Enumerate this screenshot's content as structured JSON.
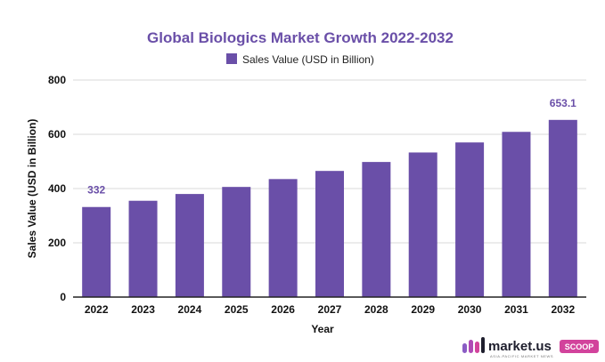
{
  "colors": {
    "bar": "#6a4fa8",
    "title": "#6a4fa8",
    "grid": "#d9d9d9",
    "axis": "#222222",
    "label": "#6a4fa8"
  },
  "chart_data": {
    "type": "bar",
    "title": "Global Biologics Market Growth 2022-2032",
    "legend": [
      "Sales Value (USD in Billion)"
    ],
    "legend_position": "top-center",
    "xlabel": "Year",
    "ylabel": "Sales Value (USD in Billion)",
    "ylim": [
      0,
      800
    ],
    "yticks": [
      0,
      200,
      400,
      600,
      800
    ],
    "grid": true,
    "categories": [
      "2022",
      "2023",
      "2024",
      "2025",
      "2026",
      "2027",
      "2028",
      "2029",
      "2030",
      "2031",
      "2032"
    ],
    "series": [
      {
        "name": "Sales Value (USD in Billion)",
        "values": [
          332,
          355,
          380,
          406,
          435,
          465,
          498,
          533,
          570,
          609,
          653.1
        ]
      }
    ],
    "data_labels": [
      {
        "category": "2022",
        "text": "332"
      },
      {
        "category": "2032",
        "text": "653.1"
      }
    ]
  },
  "logo": {
    "word": "market.us",
    "tag": "SCOOP",
    "sub": "ASIA-PACIFIC MARKET NEWS"
  }
}
